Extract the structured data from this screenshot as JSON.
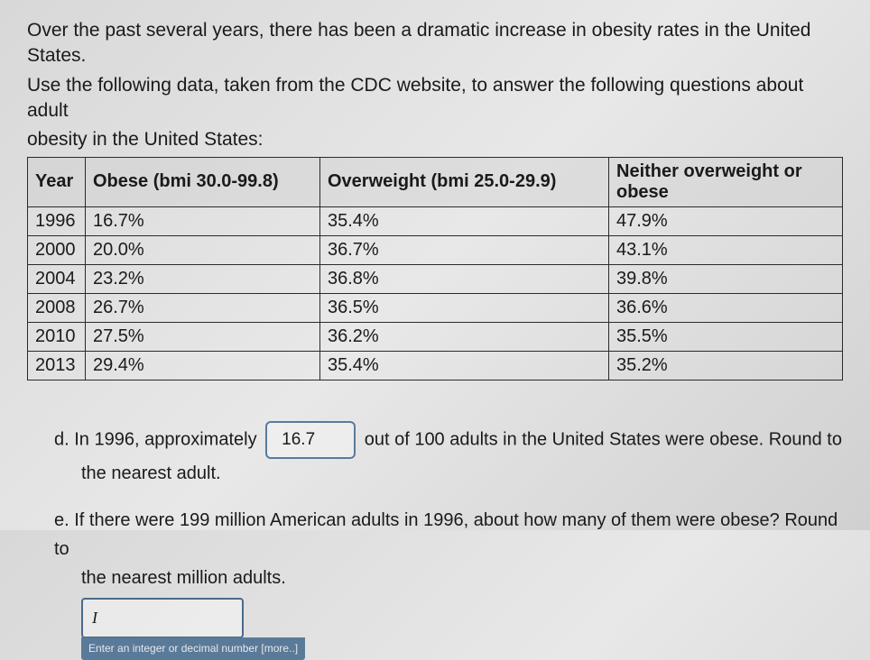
{
  "intro": {
    "line1": "Over the past several years, there has been a dramatic increase in obesity rates in the United States.",
    "line2": "Use the following data, taken from the CDC website, to answer the following questions about adult",
    "line3": "obesity in the United States:"
  },
  "table": {
    "headers": {
      "year": "Year",
      "obese": "Obese (bmi 30.0-99.8)",
      "overweight": "Overweight (bmi 25.0-29.9)",
      "neither": "Neither overweight or obese"
    },
    "rows": [
      {
        "year": "1996",
        "obese": "16.7%",
        "overweight": "35.4%",
        "neither": "47.9%"
      },
      {
        "year": "2000",
        "obese": "20.0%",
        "overweight": "36.7%",
        "neither": "43.1%"
      },
      {
        "year": "2004",
        "obese": "23.2%",
        "overweight": "36.8%",
        "neither": "39.8%"
      },
      {
        "year": "2008",
        "obese": "26.7%",
        "overweight": "36.5%",
        "neither": "36.6%"
      },
      {
        "year": "2010",
        "obese": "27.5%",
        "overweight": "36.2%",
        "neither": "35.5%"
      },
      {
        "year": "2013",
        "obese": "29.4%",
        "overweight": "35.4%",
        "neither": "35.2%"
      }
    ]
  },
  "questions": {
    "d": {
      "prefix": "d. In 1996, approximately",
      "answer": "16.7",
      "middle": "out of 100 adults in the United States were obese. Round to",
      "suffix": "the nearest adult."
    },
    "e": {
      "text": "e. If there were 199 million American adults in 1996, about how many of them were obese? Round to",
      "suffix": "the nearest million adults.",
      "input_value": "|",
      "hint": "Enter an integer or decimal number [more..]"
    }
  },
  "styling": {
    "background_gradient": [
      "#d8d8d8",
      "#e8e8e8",
      "#d0d0d0"
    ],
    "text_color": "#1a1a1a",
    "border_color": "#2a2a2a",
    "box_border_color": "#5a7a9a",
    "hint_bg": "#5a7a9a",
    "hint_color": "#e8e8e8",
    "intro_fontsize": 21,
    "table_fontsize": 20,
    "question_fontsize": 20
  }
}
